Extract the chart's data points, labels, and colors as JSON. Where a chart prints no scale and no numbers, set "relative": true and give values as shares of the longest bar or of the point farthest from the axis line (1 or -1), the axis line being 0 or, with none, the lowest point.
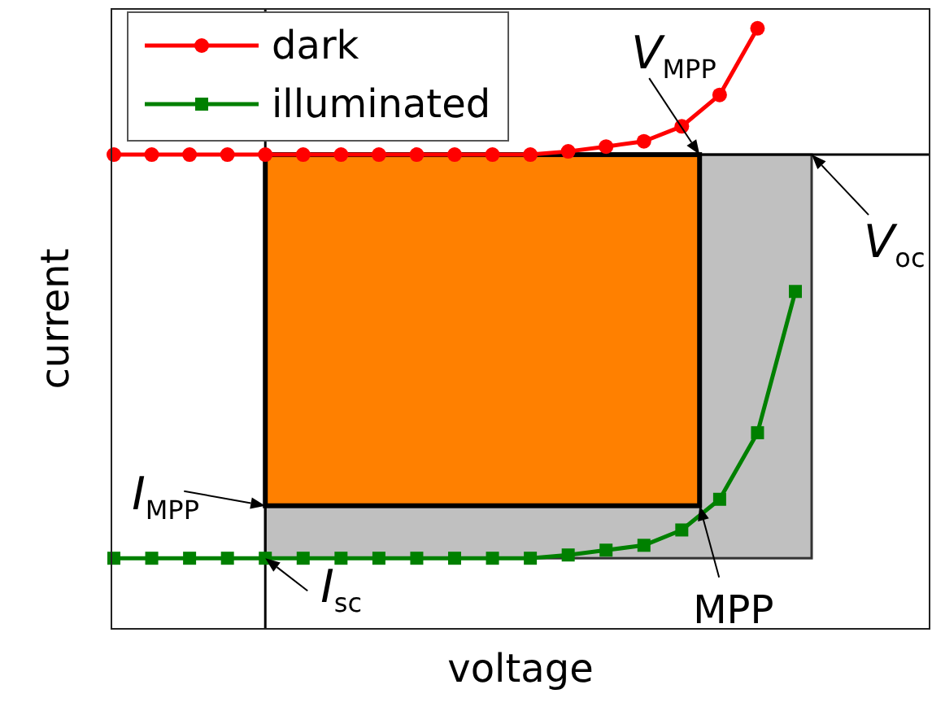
{
  "chart_data": {
    "type": "line",
    "xlabel": "voltage",
    "ylabel": "current",
    "relative": true,
    "legend": "top left",
    "line_style": "solid",
    "categories": [
      null,
      null,
      null,
      null,
      null,
      null,
      null,
      null,
      null,
      null,
      null,
      null,
      null,
      null,
      null,
      null,
      null,
      null,
      null
    ],
    "series": [
      {
        "name": "dark",
        "color": "#ff0000",
        "marker": "circle",
        "values": [
          0,
          0,
          0,
          0,
          0,
          0,
          0,
          0,
          0,
          0,
          0,
          0,
          0.008,
          0.02,
          0.033,
          0.07,
          0.148,
          0.313,
          null
        ]
      },
      {
        "name": "illuminated",
        "color": "#008000",
        "marker": "square",
        "values": [
          -1,
          -1,
          -1,
          -1,
          -1,
          -1,
          -1,
          -1,
          -1,
          -1,
          -1,
          -1,
          -0.992,
          -0.98,
          -0.968,
          -0.93,
          -0.854,
          -0.689,
          -0.339
        ]
      }
    ],
    "annotations": [
      "V$_{MPP}$",
      "V$_{oc}$",
      "I$_{MPP}$",
      {
        "text": "I$_{sc}$",
        "y": -1
      },
      {
        "text": "MPP",
        "y": -0.87
      }
    ]
  }
}
